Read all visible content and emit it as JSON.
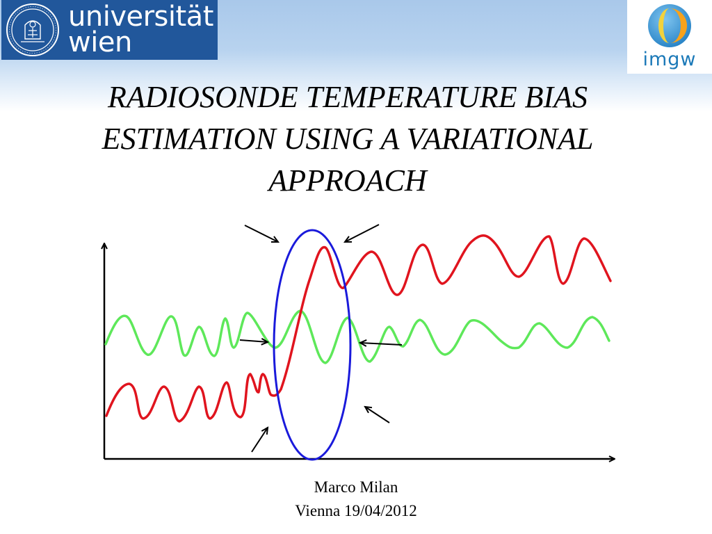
{
  "header": {
    "left_logo": {
      "line1": "universität",
      "line2": "wien",
      "icon": "university-seal-icon"
    },
    "right_logo": {
      "text": "imgw",
      "icon": "globe-icon"
    }
  },
  "title": {
    "lines": [
      "RADIOSONDE TEMPERATURE BIAS",
      "ESTIMATION USING A VARIATIONAL",
      "APPROACH"
    ]
  },
  "footer": {
    "author": "Marco Milan",
    "place_date": "Vienna  19/04/2012"
  },
  "colors": {
    "red_series": "#e0141e",
    "green_series": "#5ee85a",
    "ellipse": "#1a1adb",
    "axes": "#000000"
  }
}
